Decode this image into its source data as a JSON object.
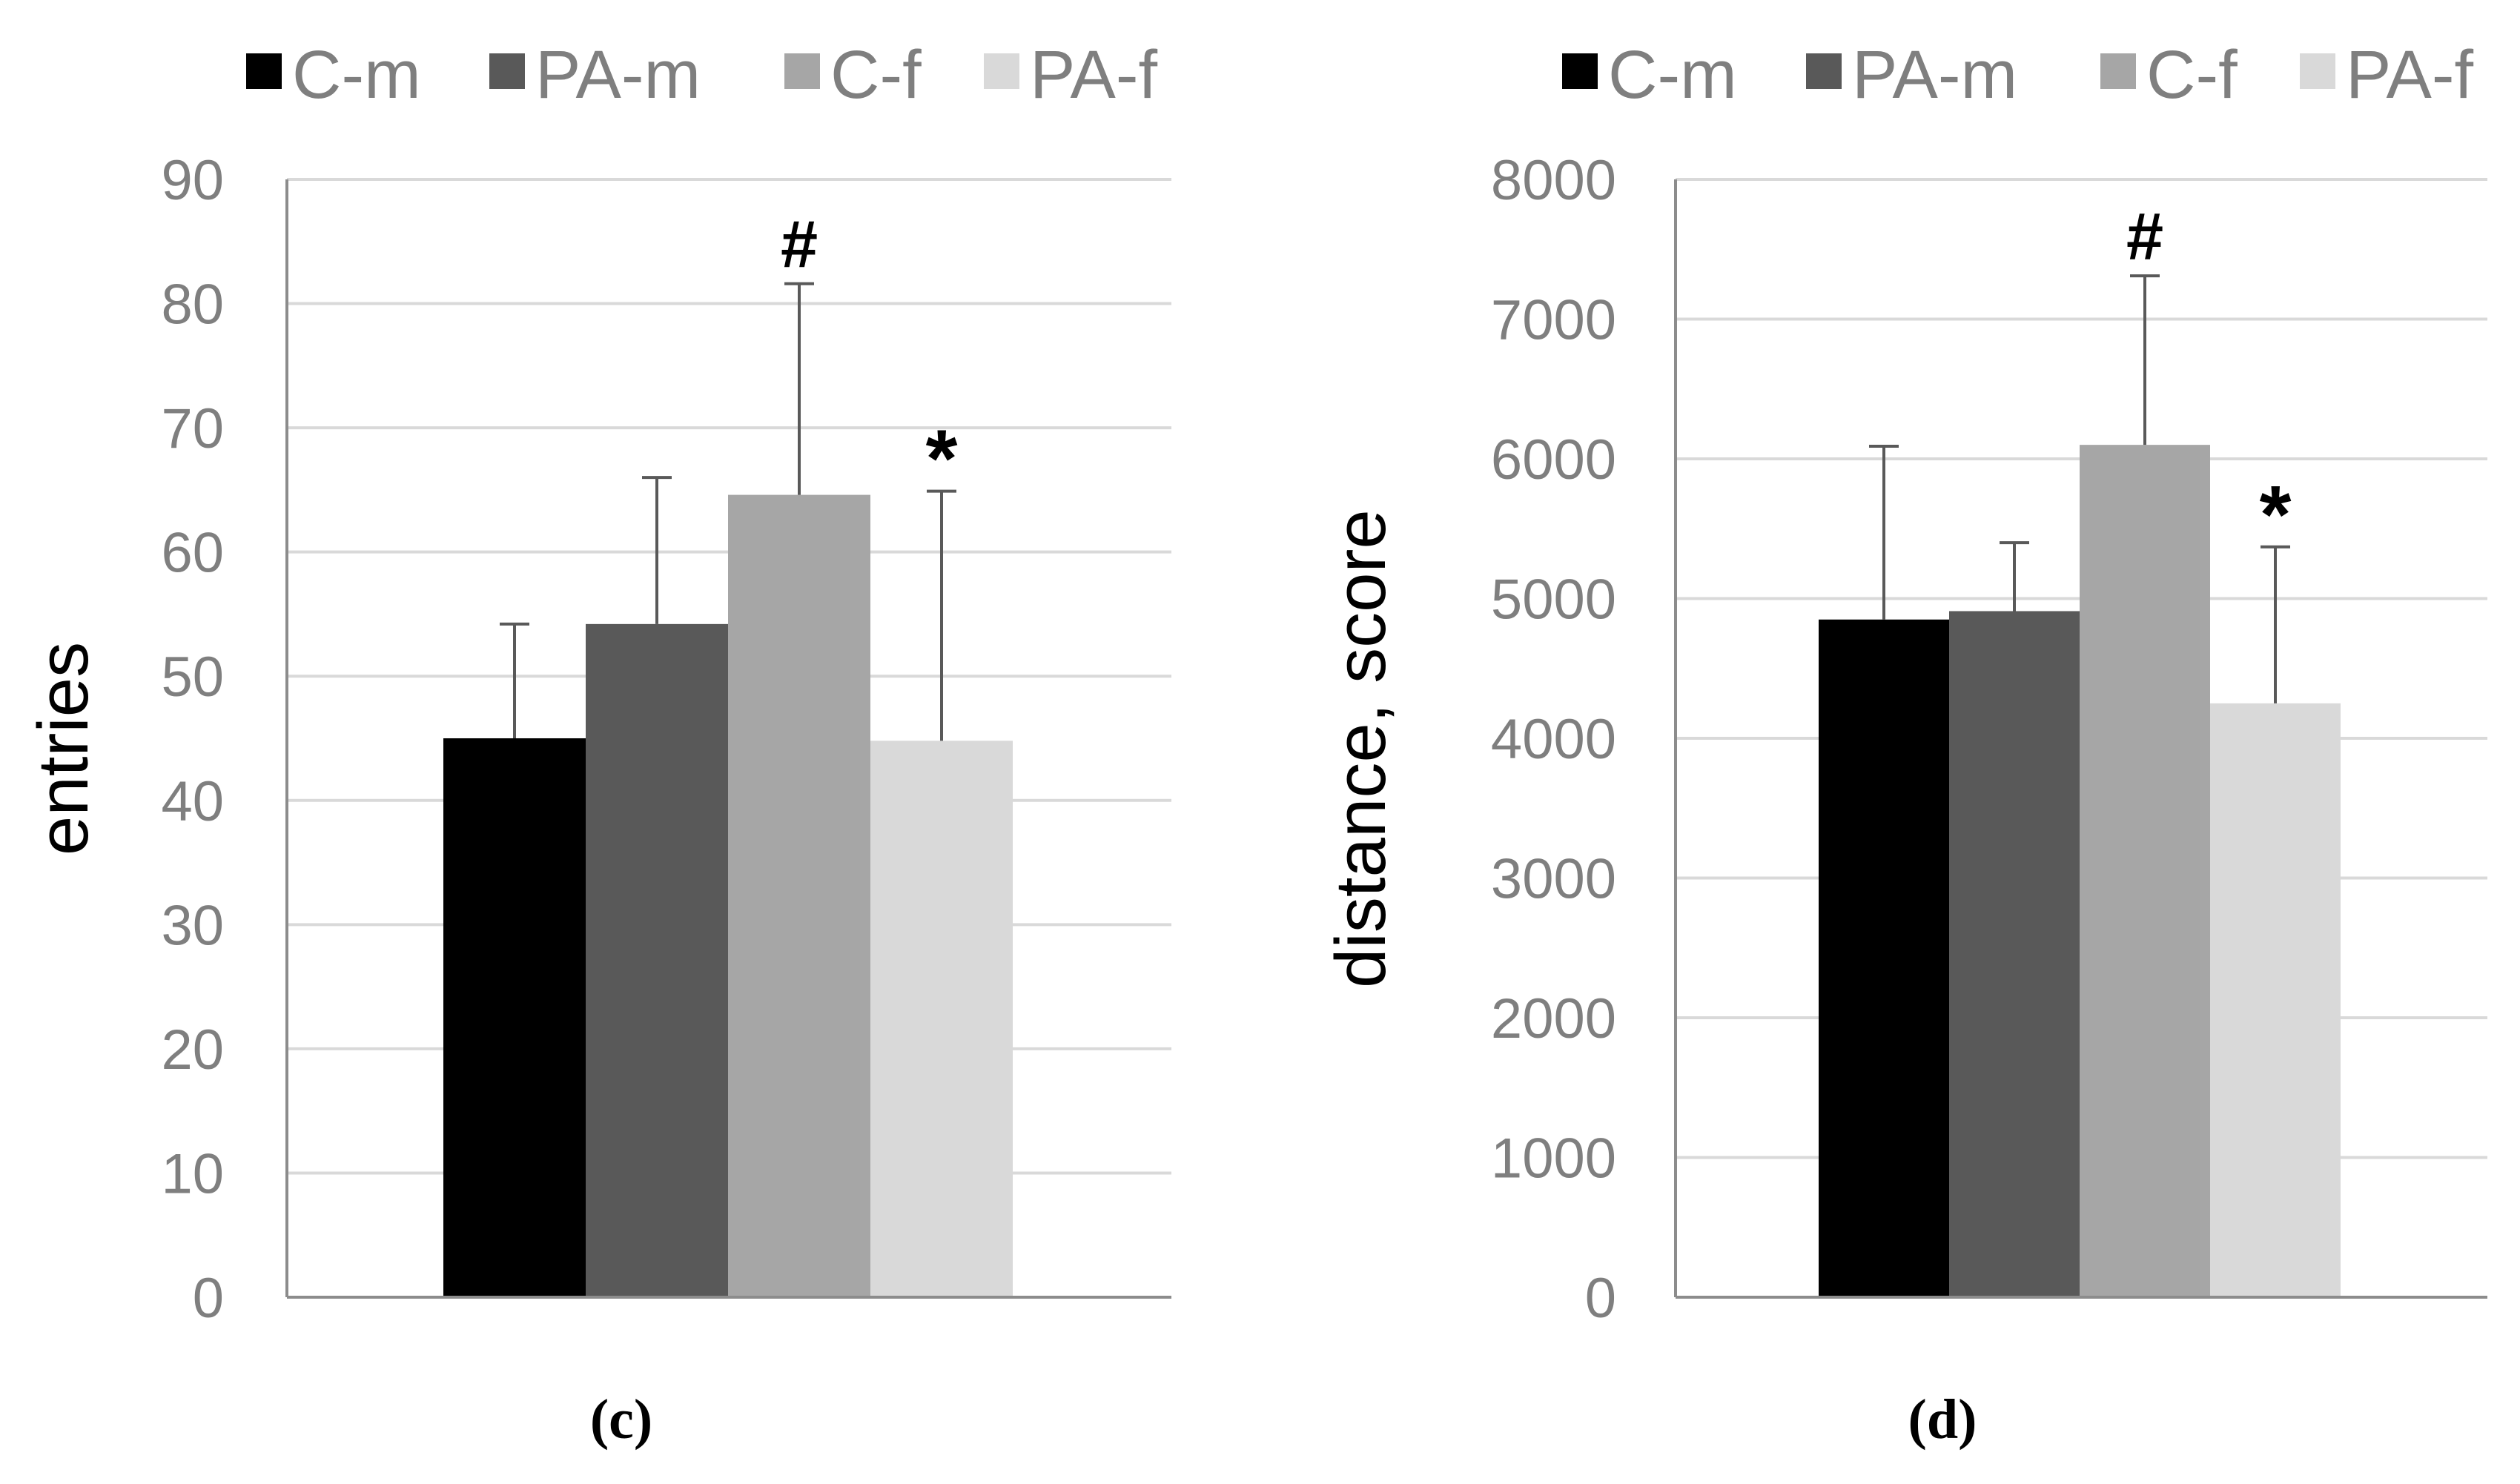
{
  "chart_data": [
    {
      "type": "bar",
      "panel_label": "(c)",
      "title": "",
      "xlabel": "",
      "ylabel": "entries",
      "ylim": [
        0,
        90
      ],
      "yticks": [
        0,
        10,
        20,
        30,
        40,
        50,
        60,
        70,
        80,
        90
      ],
      "grid": true,
      "legend_position": "top",
      "series": [
        {
          "name": "C-m",
          "value": 45,
          "error": 9.2,
          "color": "#000000",
          "annotation": ""
        },
        {
          "name": "PA-m",
          "value": 54.2,
          "error": 11.8,
          "color": "#595959",
          "annotation": ""
        },
        {
          "name": "C-f",
          "value": 64.6,
          "error": 17,
          "color": "#a6a6a6",
          "annotation": "#"
        },
        {
          "name": "PA-f",
          "value": 44.8,
          "error": 20.1,
          "color": "#d9d9d9",
          "annotation": "*"
        }
      ]
    },
    {
      "type": "bar",
      "panel_label": "(d)",
      "title": "",
      "xlabel": "",
      "ylabel": "distance, score",
      "ylim": [
        0,
        8000
      ],
      "yticks": [
        0,
        1000,
        2000,
        3000,
        4000,
        5000,
        6000,
        7000,
        8000
      ],
      "grid": true,
      "legend_position": "top",
      "series": [
        {
          "name": "C-m",
          "value": 4850,
          "error": 1240,
          "color": "#000000",
          "annotation": ""
        },
        {
          "name": "PA-m",
          "value": 4910,
          "error": 490,
          "color": "#595959",
          "annotation": ""
        },
        {
          "name": "C-f",
          "value": 6100,
          "error": 1210,
          "color": "#a6a6a6",
          "annotation": "#"
        },
        {
          "name": "PA-f",
          "value": 4250,
          "error": 1120,
          "color": "#d9d9d9",
          "annotation": "*"
        }
      ]
    }
  ]
}
